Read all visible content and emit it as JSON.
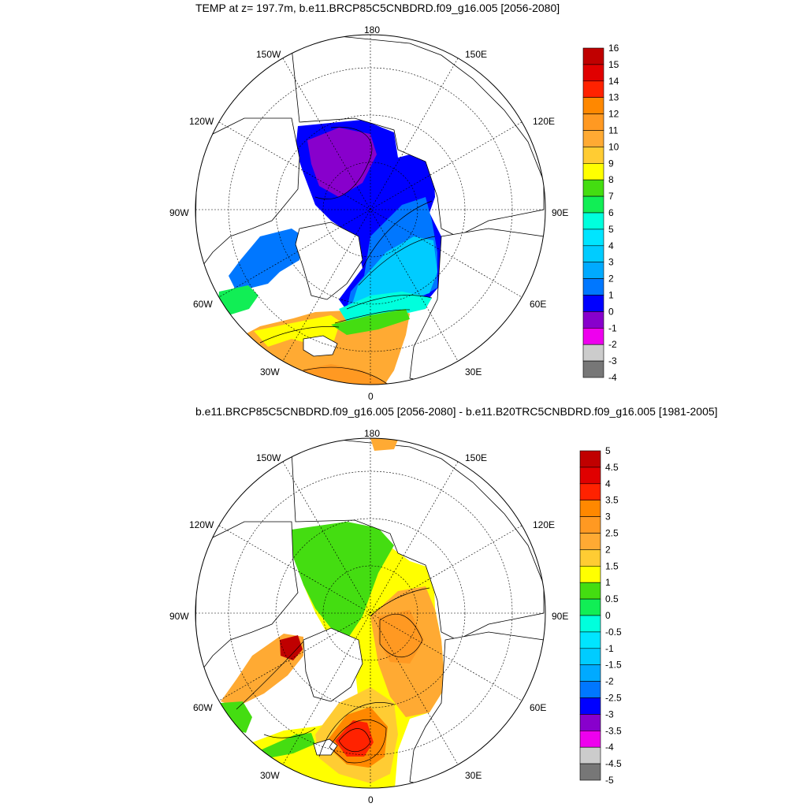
{
  "top_panel": {
    "title": "TEMP at z= 197.7m, b.e11.BRCP85C5CNBDRD.f09_g16.005 [2056-2080]",
    "colorbar": {
      "labels": [
        "16",
        "15",
        "14",
        "13",
        "12",
        "11",
        "10",
        "9",
        "8",
        "7",
        "6",
        "5",
        "4",
        "3",
        "2",
        "1",
        "0",
        "-1",
        "-2",
        "-3",
        "-4"
      ],
      "colors": [
        "#c00000",
        "#e00000",
        "#ff2200",
        "#ff8800",
        "#ff9922",
        "#ffaa33",
        "#ffcc33",
        "#ffff00",
        "#44dd11",
        "#11ee55",
        "#00ffdd",
        "#00e5ff",
        "#00ccff",
        "#00aaff",
        "#0077ff",
        "#0000ff",
        "#8800cc",
        "#ee00ee",
        "#cccccc",
        "#777777"
      ]
    }
  },
  "bottom_panel": {
    "title": "b.e11.BRCP85C5CNBDRD.f09_g16.005 [2056-2080] - b.e11.B20TRC5CNBDRD.f09_g16.005 [1981-2005]",
    "colorbar": {
      "labels": [
        "5",
        "4.5",
        "4",
        "3.5",
        "3",
        "2.5",
        "2",
        "1.5",
        "1",
        "0.5",
        "0",
        "-0.5",
        "-1",
        "-1.5",
        "-2",
        "-2.5",
        "-3",
        "-3.5",
        "-4",
        "-4.5",
        "-5"
      ],
      "colors": [
        "#c00000",
        "#e00000",
        "#ff2200",
        "#ff8800",
        "#ff9922",
        "#ffaa33",
        "#ffcc33",
        "#ffff00",
        "#44dd11",
        "#11ee55",
        "#00ffdd",
        "#00e5ff",
        "#00ccff",
        "#00aaff",
        "#0077ff",
        "#0000ff",
        "#8800cc",
        "#ee00ee",
        "#cccccc",
        "#777777"
      ]
    }
  },
  "longitude_labels": {
    "lon_180": "180",
    "lon_150w": "150W",
    "lon_150e": "150E",
    "lon_120w": "120W",
    "lon_120e": "120E",
    "lon_90w": "90W",
    "lon_90e": "90E",
    "lon_60w": "60W",
    "lon_60e": "60E",
    "lon_30w": "30W",
    "lon_30e": "30E",
    "lon_0": "0"
  }
}
